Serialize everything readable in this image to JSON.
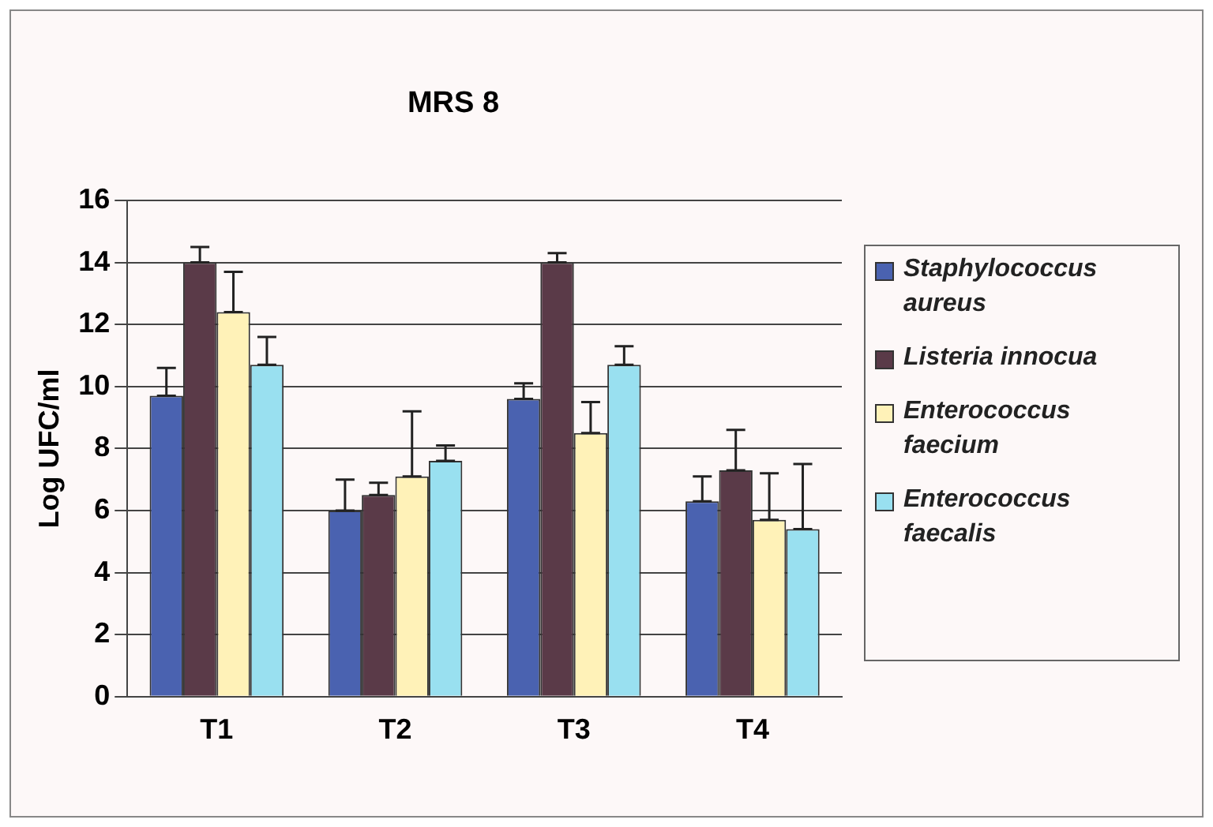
{
  "chart_data": {
    "type": "bar",
    "title": "MRS 8",
    "ylabel": "Log UFC/ml",
    "categories": [
      "T1",
      "T2",
      "T3",
      "T4"
    ],
    "series": [
      {
        "name": "Staphylococcus aureus",
        "color": "#4a62b0",
        "values": [
          9.7,
          6.0,
          9.6,
          6.3
        ],
        "errors": [
          [
            9.7,
            10.6
          ],
          [
            6.0,
            7.0
          ],
          [
            9.6,
            10.1
          ],
          [
            6.3,
            7.1
          ]
        ]
      },
      {
        "name": "Listeria innocua",
        "color": "#5a3a48",
        "values": [
          14.0,
          6.5,
          14.0,
          7.3
        ],
        "errors": [
          [
            14.0,
            14.5
          ],
          [
            6.5,
            6.9
          ],
          [
            14.0,
            14.3
          ],
          [
            7.3,
            8.6
          ]
        ]
      },
      {
        "name": "Enterococcus faecium",
        "color": "#fff2b8",
        "values": [
          12.4,
          7.1,
          8.5,
          5.7
        ],
        "errors": [
          [
            12.4,
            13.7
          ],
          [
            7.1,
            9.2
          ],
          [
            8.5,
            9.5
          ],
          [
            5.7,
            7.2
          ]
        ]
      },
      {
        "name": "Enterococcus faecalis",
        "color": "#99e0f0",
        "values": [
          10.7,
          7.6,
          10.7,
          5.4
        ],
        "errors": [
          [
            10.7,
            11.6
          ],
          [
            7.6,
            8.1
          ],
          [
            10.7,
            11.3
          ],
          [
            5.4,
            7.5
          ]
        ]
      }
    ],
    "ylim": [
      0,
      16
    ],
    "yticks": [
      0,
      2,
      4,
      6,
      8,
      10,
      12,
      14,
      16
    ],
    "grid": "y",
    "legend": "right"
  }
}
